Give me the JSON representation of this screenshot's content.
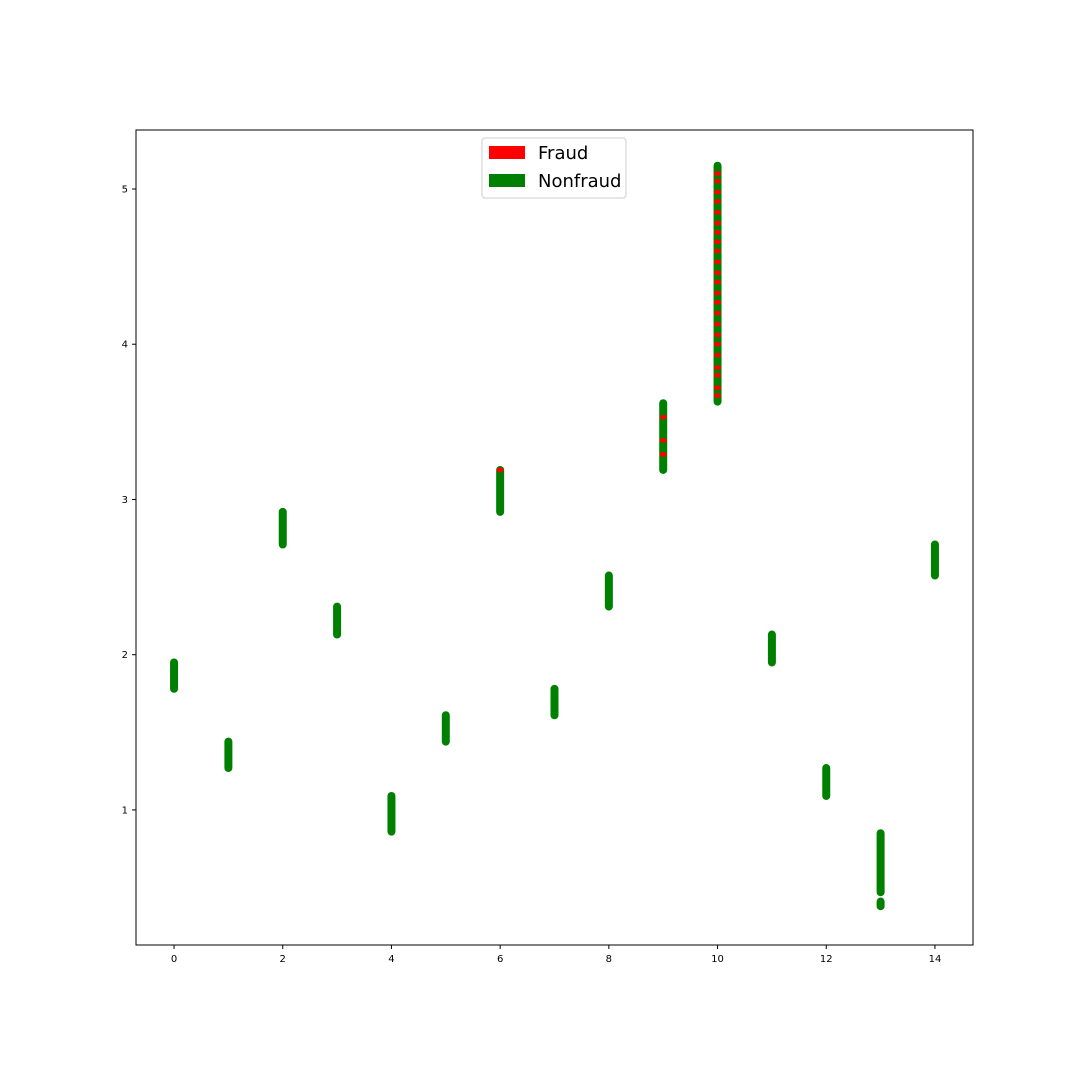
{
  "chart_data": {
    "type": "scatter",
    "title": "",
    "xlabel": "",
    "ylabel": "",
    "xlim": [
      -0.7,
      14.7
    ],
    "ylim": [
      0.13,
      5.38
    ],
    "grid": false,
    "legend_placement": "upper center",
    "xticks": [
      0,
      2,
      4,
      6,
      8,
      10,
      12,
      14
    ],
    "yticks": [
      1,
      2,
      3,
      4,
      5
    ],
    "xtick_labels": [
      "0",
      "2",
      "4",
      "6",
      "8",
      "10",
      "12",
      "14"
    ],
    "ytick_labels": [
      "1",
      "2",
      "3",
      "4",
      "5"
    ],
    "legend": [
      {
        "label": "Fraud",
        "color": "#ff0000"
      },
      {
        "label": "Nonfraud",
        "color": "#008000"
      }
    ],
    "series": [
      {
        "name": "Nonfraud",
        "color": "#008000",
        "clusters": [
          {
            "x": 0,
            "y_min": 1.78,
            "y_max": 1.95
          },
          {
            "x": 1,
            "y_min": 1.27,
            "y_max": 1.44
          },
          {
            "x": 2,
            "y_min": 2.71,
            "y_max": 2.92
          },
          {
            "x": 3,
            "y_min": 2.13,
            "y_max": 2.31
          },
          {
            "x": 4,
            "y_min": 0.86,
            "y_max": 1.09
          },
          {
            "x": 5,
            "y_min": 1.44,
            "y_max": 1.61
          },
          {
            "x": 6,
            "y_min": 2.92,
            "y_max": 3.19
          },
          {
            "x": 7,
            "y_min": 1.61,
            "y_max": 1.78
          },
          {
            "x": 8,
            "y_min": 2.31,
            "y_max": 2.51
          },
          {
            "x": 9,
            "y_min": 3.19,
            "y_max": 3.62
          },
          {
            "x": 10,
            "y_min": 3.63,
            "y_max": 5.15
          },
          {
            "x": 11,
            "y_min": 1.95,
            "y_max": 2.13
          },
          {
            "x": 12,
            "y_min": 1.09,
            "y_max": 1.27
          },
          {
            "x": 13,
            "y_min": 0.47,
            "y_max": 0.85
          },
          {
            "x": 13,
            "y_min": 0.38,
            "y_max": 0.41
          },
          {
            "x": 14,
            "y_min": 2.51,
            "y_max": 2.71
          }
        ]
      },
      {
        "name": "Fraud",
        "color": "#ff0000",
        "points": [
          {
            "x": 6,
            "y": 3.19
          },
          {
            "x": 9,
            "y": 3.53
          },
          {
            "x": 9,
            "y": 3.38
          },
          {
            "x": 9,
            "y": 3.29
          },
          {
            "x": 10,
            "y": 5.1
          },
          {
            "x": 10,
            "y": 5.05
          },
          {
            "x": 10,
            "y": 4.98
          },
          {
            "x": 10,
            "y": 4.92
          },
          {
            "x": 10,
            "y": 4.85
          },
          {
            "x": 10,
            "y": 4.78
          },
          {
            "x": 10,
            "y": 4.72
          },
          {
            "x": 10,
            "y": 4.66
          },
          {
            "x": 10,
            "y": 4.6
          },
          {
            "x": 10,
            "y": 4.53
          },
          {
            "x": 10,
            "y": 4.46
          },
          {
            "x": 10,
            "y": 4.4
          },
          {
            "x": 10,
            "y": 4.33
          },
          {
            "x": 10,
            "y": 4.27
          },
          {
            "x": 10,
            "y": 4.2
          },
          {
            "x": 10,
            "y": 4.13
          },
          {
            "x": 10,
            "y": 4.06
          },
          {
            "x": 10,
            "y": 4.0
          },
          {
            "x": 10,
            "y": 3.93
          },
          {
            "x": 10,
            "y": 3.85
          },
          {
            "x": 10,
            "y": 3.8
          },
          {
            "x": 10,
            "y": 3.72
          },
          {
            "x": 10,
            "y": 3.67
          }
        ]
      }
    ]
  }
}
